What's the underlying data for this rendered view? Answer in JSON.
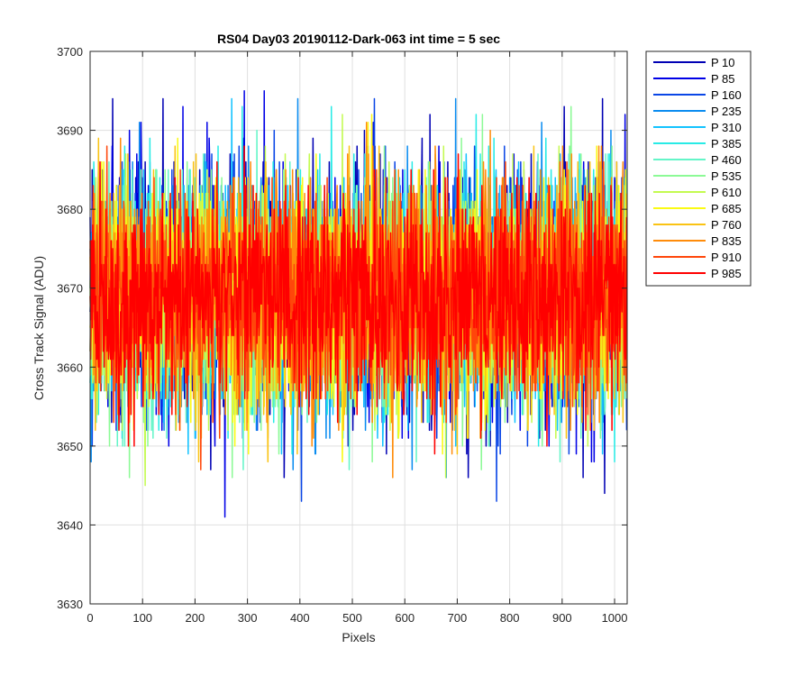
{
  "chart_data": {
    "type": "line",
    "title": "RS04 Day03 20190112-Dark-063 int time = 5 sec",
    "xlabel": "Pixels",
    "ylabel": "Cross Track Signal (ADU)",
    "xlim": [
      0,
      1024
    ],
    "ylim": [
      3630,
      3700
    ],
    "xticks": [
      0,
      100,
      200,
      300,
      400,
      500,
      600,
      700,
      800,
      900,
      1000
    ],
    "yticks": [
      3630,
      3640,
      3650,
      3660,
      3670,
      3680,
      3690,
      3700
    ],
    "grid": true,
    "legend_position": "outside-top-right",
    "n_pixels": 1024,
    "signal_mean": 3669,
    "series": [
      {
        "name": "P 10",
        "color": "#0000b4",
        "noise_std": 7.5,
        "min": 3639,
        "max": 3694
      },
      {
        "name": "P 85",
        "color": "#0000e6",
        "noise_std": 7.5,
        "min": 3641,
        "max": 3695
      },
      {
        "name": "P 160",
        "color": "#0a46e6",
        "noise_std": 7.4,
        "min": 3643,
        "max": 3694
      },
      {
        "name": "P 235",
        "color": "#0a8cf0",
        "noise_std": 7.4,
        "min": 3646,
        "max": 3694
      },
      {
        "name": "P 310",
        "color": "#14c3ff",
        "noise_std": 7.3,
        "min": 3647,
        "max": 3695
      },
      {
        "name": "P 385",
        "color": "#28ebe6",
        "noise_std": 7.3,
        "min": 3648,
        "max": 3693
      },
      {
        "name": "P 460",
        "color": "#64f5c8",
        "noise_std": 7.2,
        "min": 3644,
        "max": 3692
      },
      {
        "name": "P 535",
        "color": "#8cfa96",
        "noise_std": 7.2,
        "min": 3646,
        "max": 3693
      },
      {
        "name": "P 610",
        "color": "#c3fa50",
        "noise_std": 7.1,
        "min": 3645,
        "max": 3693
      },
      {
        "name": "P 685",
        "color": "#fafa14",
        "noise_std": 7.0,
        "min": 3647,
        "max": 3694
      },
      {
        "name": "P 760",
        "color": "#fac314",
        "noise_std": 7.0,
        "min": 3641,
        "max": 3694
      },
      {
        "name": "P 835",
        "color": "#ff8c0a",
        "noise_std": 6.9,
        "min": 3642,
        "max": 3693
      },
      {
        "name": "P 910",
        "color": "#ff460a",
        "noise_std": 6.8,
        "min": 3642,
        "max": 3698
      },
      {
        "name": "P 985",
        "color": "#ff0000",
        "noise_std": 6.8,
        "min": 3639,
        "max": 3696
      }
    ]
  }
}
